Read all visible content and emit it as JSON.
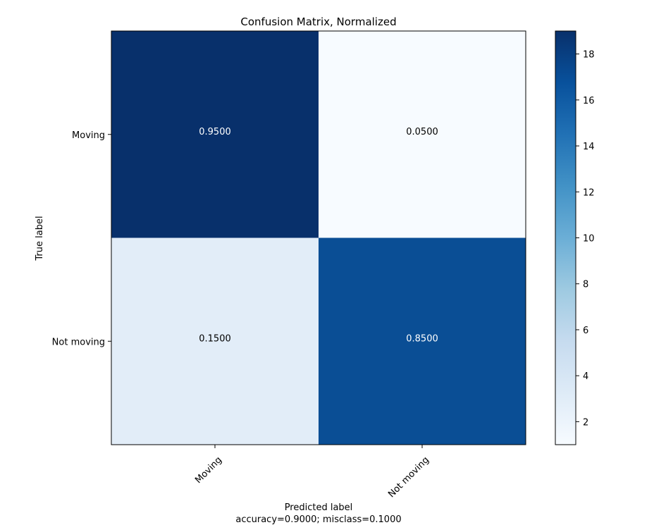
{
  "chart_data": {
    "type": "heatmap",
    "title": "Confusion Matrix, Normalized",
    "ylabel": "True label",
    "xlabel_lines": [
      "Predicted label",
      "accuracy=0.9000; misclass=0.1000"
    ],
    "x_categories": [
      "Moving",
      "Not moving"
    ],
    "y_categories": [
      "Moving",
      "Not moving"
    ],
    "counts": [
      [
        19,
        1
      ],
      [
        3,
        17
      ]
    ],
    "cell_labels": [
      [
        "0.9500",
        "0.0500"
      ],
      [
        "0.1500",
        "0.8500"
      ]
    ],
    "cell_colors": [
      [
        "#08306b",
        "#f7fbff"
      ],
      [
        "#e2edf8",
        "#0a4e95"
      ]
    ],
    "cell_text_colors": [
      [
        "#ffffff",
        "#000000"
      ],
      [
        "#000000",
        "#ffffff"
      ]
    ],
    "colorbar": {
      "min": 1,
      "max": 19,
      "ticks": [
        "2",
        "4",
        "6",
        "8",
        "10",
        "12",
        "14",
        "16",
        "18"
      ],
      "colormap": "Blues"
    }
  }
}
